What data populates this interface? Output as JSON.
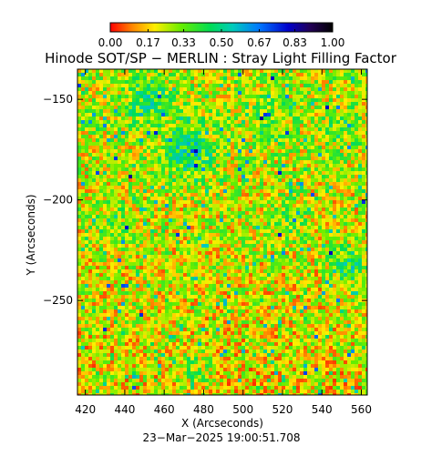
{
  "chart_data": {
    "type": "heatmap",
    "title": "Hinode SOT/SP − MERLIN : Stray Light Filling Factor",
    "xlabel": "X (Arcseconds)",
    "ylabel": "Y (Arcseconds)",
    "timestamp": "23−Mar−2025 19:00:51.708",
    "xlim": [
      416,
      563
    ],
    "ylim": [
      -297,
      -135
    ],
    "x_ticks": [
      420,
      440,
      460,
      480,
      500,
      520,
      540,
      560
    ],
    "x_tick_labels": [
      "420",
      "440",
      "460",
      "480",
      "500",
      "520",
      "540",
      "560"
    ],
    "y_ticks": [
      -150,
      -200,
      -250
    ],
    "y_tick_labels": [
      "−150",
      "−200",
      "−250"
    ],
    "colorbar": {
      "min": 0.0,
      "max": 1.0,
      "ticks": [
        0.0,
        0.17,
        0.33,
        0.5,
        0.67,
        0.83,
        1.0
      ],
      "tick_labels": [
        "0.00",
        "0.17",
        "0.33",
        "0.50",
        "0.67",
        "0.83",
        "1.00"
      ],
      "colors": [
        "#ff0000",
        "#ff8800",
        "#ffee00",
        "#66ee00",
        "#00dd55",
        "#00ccbb",
        "#0077ff",
        "#0000cc",
        "#220055",
        "#000000"
      ]
    },
    "map_summary": "Noisy speckled field dominated by green, yellow and red values with scattered blue/cyan patches (higher filling factor), denser in the upper-middle region."
  }
}
